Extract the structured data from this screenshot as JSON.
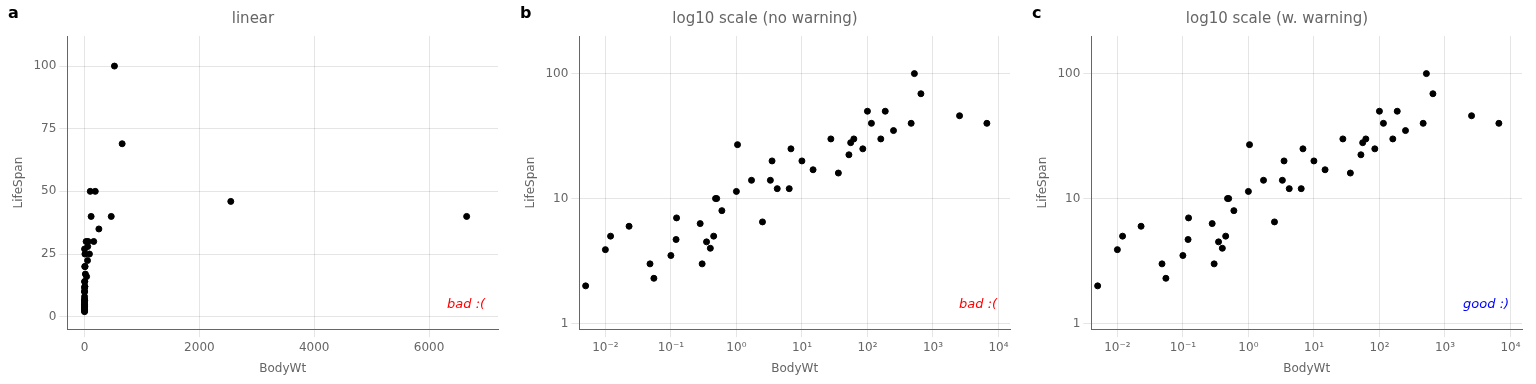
{
  "chart_data": [
    {
      "type": "scatter",
      "title": "linear",
      "panel_label": "a",
      "x_label": "BodyWt",
      "y_label": "LifeSpan",
      "annotation": {
        "text": "bad :(",
        "color": "red"
      },
      "color": "black",
      "grid": true,
      "x": [
        0.005,
        0.01,
        0.012,
        0.023,
        0.048,
        0.055,
        0.1,
        0.12,
        0.122,
        0.28,
        0.3,
        0.35,
        0.4,
        0.45,
        0.48,
        0.5,
        0.6,
        1.0,
        1.04,
        1.7,
        2.5,
        3.3,
        3.5,
        4.2,
        6.4,
        6.8,
        10.0,
        14.8,
        27.66,
        36.0,
        52.16,
        55.5,
        62.0,
        85.0,
        100.0,
        115.0,
        160.0,
        187.0,
        250.0,
        465.0,
        521.0,
        655.0,
        2547.0,
        6654.0
      ],
      "values": [
        2.0,
        3.9,
        5.0,
        6.0,
        3.0,
        2.3,
        3.5,
        4.7,
        7.0,
        6.3,
        3.0,
        4.5,
        4.0,
        5.0,
        10.0,
        10.0,
        8.0,
        11.4,
        27.0,
        14.0,
        6.5,
        14.0,
        20.0,
        12.0,
        12.0,
        25.0,
        20.0,
        17.0,
        30.0,
        16.0,
        22.4,
        28.0,
        30.0,
        25.0,
        50.0,
        40.0,
        30.0,
        50.0,
        35.0,
        40.0,
        100.0,
        69.0,
        46.0,
        40.0
      ],
      "xlim": [
        -300,
        7200
      ],
      "xticks": [
        0,
        2000,
        4000,
        6000
      ],
      "ylim": [
        -5,
        112
      ],
      "yticks": [
        0,
        25,
        50,
        75,
        100
      ]
    },
    {
      "type": "scatter",
      "title": "log10 scale (no warning)",
      "panel_label": "b",
      "x_label": "BodyWt",
      "y_label": "LifeSpan",
      "annotation": {
        "text": "bad :(",
        "color": "red"
      },
      "color": "black",
      "grid": true,
      "log": true,
      "x": [
        0.005,
        0.01,
        0.012,
        0.023,
        0.048,
        0.055,
        0.1,
        0.12,
        0.122,
        0.28,
        0.3,
        0.35,
        0.4,
        0.45,
        0.48,
        0.5,
        0.6,
        1.0,
        1.04,
        1.7,
        2.5,
        3.3,
        3.5,
        4.2,
        6.4,
        6.8,
        10.0,
        14.8,
        27.66,
        36.0,
        52.16,
        55.5,
        62.0,
        85.0,
        100.0,
        115.0,
        160.0,
        187.0,
        250.0,
        465.0,
        521.0,
        655.0,
        2547.0,
        6654.0
      ],
      "values": [
        2.0,
        3.9,
        5.0,
        6.0,
        3.0,
        2.3,
        3.5,
        4.7,
        7.0,
        6.3,
        3.0,
        4.5,
        4.0,
        5.0,
        10.0,
        10.0,
        8.0,
        11.4,
        27.0,
        14.0,
        6.5,
        14.0,
        20.0,
        12.0,
        12.0,
        25.0,
        20.0,
        17.0,
        30.0,
        16.0,
        22.4,
        28.0,
        30.0,
        25.0,
        50.0,
        40.0,
        30.0,
        50.0,
        35.0,
        40.0,
        100.0,
        69.0,
        46.0,
        40.0
      ],
      "xlim": [
        0.004,
        15000
      ],
      "xticks": [
        {
          "value": 0.01,
          "label": "10⁻²"
        },
        {
          "value": 0.1,
          "label": "10⁻¹"
        },
        {
          "value": 1,
          "label": "10⁰"
        },
        {
          "value": 10,
          "label": "10¹"
        },
        {
          "value": 100,
          "label": "10²"
        },
        {
          "value": 1000,
          "label": "10³"
        },
        {
          "value": 10000,
          "label": "10⁴"
        }
      ],
      "ylim": [
        0.9,
        200
      ],
      "yticks": [
        1,
        10,
        100
      ]
    },
    {
      "type": "scatter",
      "title": "log10 scale (w. warning)",
      "panel_label": "c",
      "x_label": "BodyWt",
      "y_label": "LifeSpan",
      "annotation": {
        "text": "good :)",
        "color": "blue"
      },
      "color": "black",
      "grid": true,
      "log": true,
      "x": [
        0.005,
        0.01,
        0.012,
        0.023,
        0.048,
        0.055,
        0.1,
        0.12,
        0.122,
        0.28,
        0.3,
        0.35,
        0.4,
        0.45,
        0.48,
        0.5,
        0.6,
        1.0,
        1.04,
        1.7,
        2.5,
        3.3,
        3.5,
        4.2,
        6.4,
        6.8,
        10.0,
        14.8,
        27.66,
        36.0,
        52.16,
        55.5,
        62.0,
        85.0,
        100.0,
        115.0,
        160.0,
        187.0,
        250.0,
        465.0,
        521.0,
        655.0,
        2547.0,
        6654.0
      ],
      "values": [
        2.0,
        3.9,
        5.0,
        6.0,
        3.0,
        2.3,
        3.5,
        4.7,
        7.0,
        6.3,
        3.0,
        4.5,
        4.0,
        5.0,
        10.0,
        10.0,
        8.0,
        11.4,
        27.0,
        14.0,
        6.5,
        14.0,
        20.0,
        12.0,
        12.0,
        25.0,
        20.0,
        17.0,
        30.0,
        16.0,
        22.4,
        28.0,
        30.0,
        25.0,
        50.0,
        40.0,
        30.0,
        50.0,
        35.0,
        40.0,
        100.0,
        69.0,
        46.0,
        40.0
      ],
      "xlim": [
        0.004,
        15000
      ],
      "xticks": [
        {
          "value": 0.01,
          "label": "10⁻²"
        },
        {
          "value": 0.1,
          "label": "10⁻¹"
        },
        {
          "value": 1,
          "label": "10⁰"
        },
        {
          "value": 10,
          "label": "10¹"
        },
        {
          "value": 100,
          "label": "10²"
        },
        {
          "value": 1000,
          "label": "10³"
        },
        {
          "value": 10000,
          "label": "10⁴"
        }
      ],
      "ylim": [
        0.9,
        200
      ],
      "yticks": [
        1,
        10,
        100
      ]
    }
  ]
}
